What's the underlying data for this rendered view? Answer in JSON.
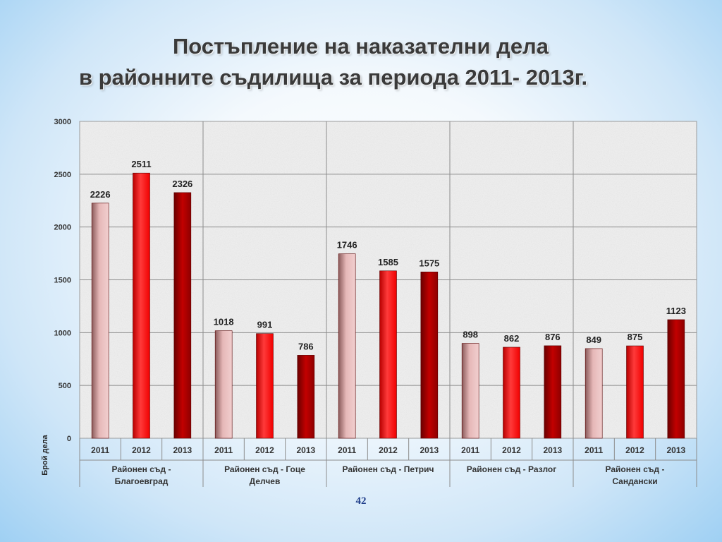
{
  "slide": {
    "title_line1": "Постъпление на наказателни дела",
    "title_line2": "в районните съдилища за периода 2011- 2013г.",
    "page_number": "42"
  },
  "chart_data": {
    "type": "bar",
    "ylabel": "Брой дела",
    "ylim": [
      0,
      3000
    ],
    "yticks": [
      "0",
      "500",
      "1000",
      "1500",
      "2000",
      "2500",
      "3000"
    ],
    "ytick_values": [
      0,
      500,
      1000,
      1500,
      2000,
      2500,
      3000
    ],
    "grid": true,
    "groups": [
      {
        "name": "Районен съд - Благоевград",
        "years": [
          "2011",
          "2012",
          "2013"
        ],
        "values": [
          2226,
          2511,
          2326
        ]
      },
      {
        "name": "Районен съд - Гоце Делчев",
        "years": [
          "2011",
          "2012",
          "2013"
        ],
        "values": [
          1018,
          991,
          786
        ]
      },
      {
        "name": "Районен съд - Петрич",
        "years": [
          "2011",
          "2012",
          "2013"
        ],
        "values": [
          1746,
          1585,
          1575
        ]
      },
      {
        "name": "Районен съд - Разлог",
        "years": [
          "2011",
          "2012",
          "2013"
        ],
        "values": [
          898,
          862,
          876
        ]
      },
      {
        "name": "Районен съд - Сандански",
        "years": [
          "2011",
          "2012",
          "2013"
        ],
        "values": [
          849,
          875,
          1123
        ]
      }
    ],
    "group_label_lines": [
      [
        "Районен съд -",
        "Благоевград"
      ],
      [
        "Районен съд - Гоце",
        "Делчев"
      ],
      [
        "Районен съд - Петрич"
      ],
      [
        "Районен съд - Разлог"
      ],
      [
        "Районен съд -",
        "Сандански"
      ]
    ],
    "colors": {
      "2011": [
        "#e6b8b8",
        "#8a5a5a"
      ],
      "2012": [
        "#ff4a4a",
        "#b80000"
      ],
      "2013": [
        "#c20000",
        "#6a0000"
      ]
    }
  }
}
